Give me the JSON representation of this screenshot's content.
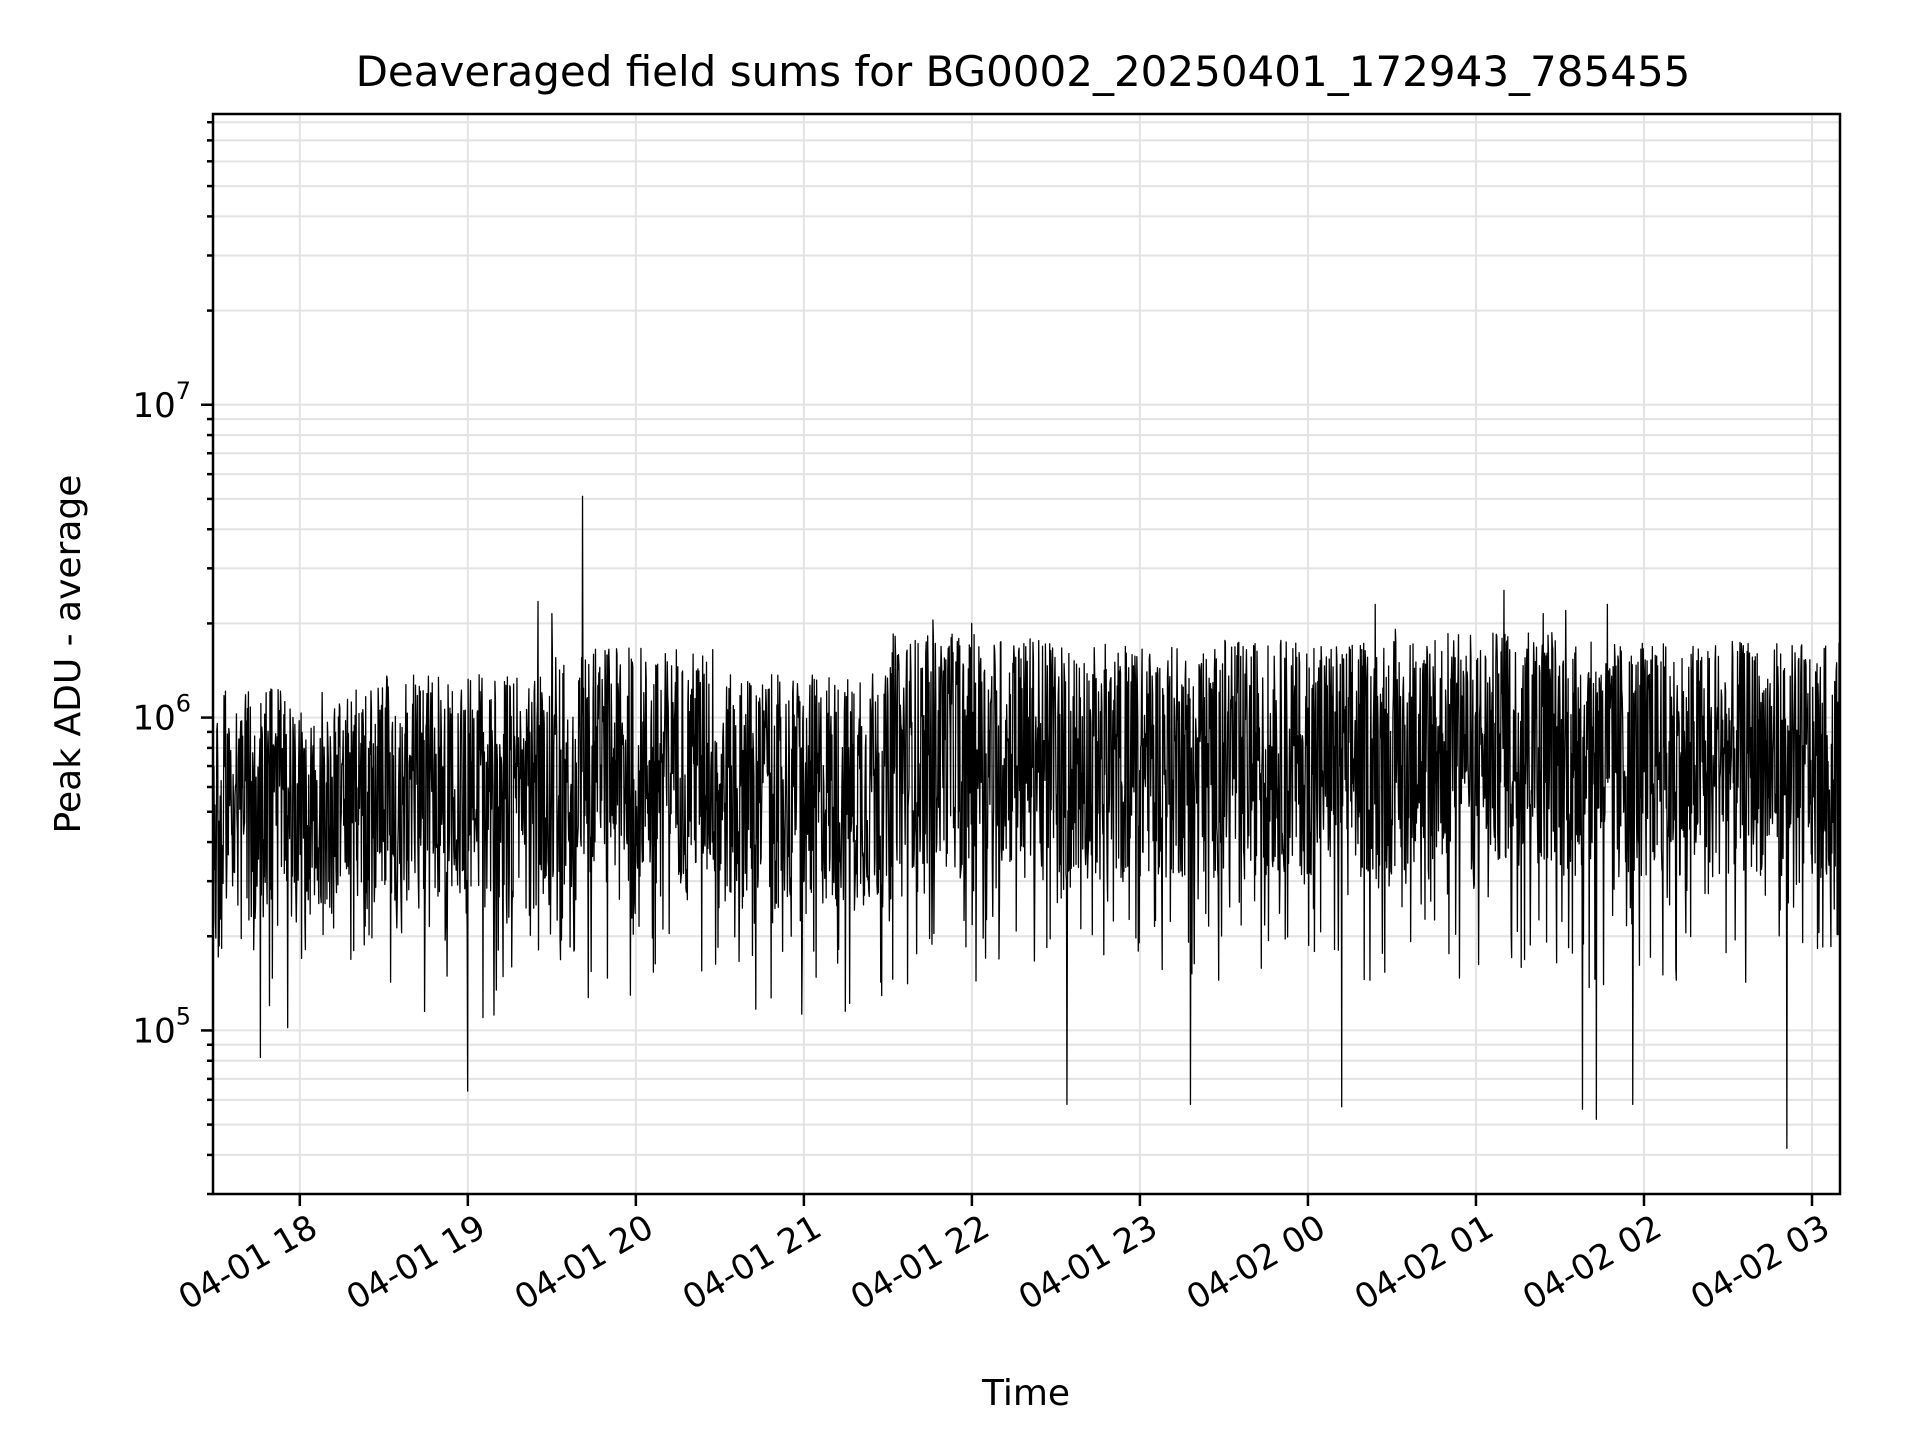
{
  "chart_data": {
    "type": "line",
    "title": "Deaveraged field sums for BG0002_20250401_172943_785455",
    "xlabel": "Time",
    "ylabel": "Peak ADU - average",
    "yscale": "log",
    "xlim": [
      "2025-04-01 17:29",
      "2025-04-02 03:10"
    ],
    "ylim": [
      30000,
      85000000
    ],
    "x_ticks": [
      "04-01 18",
      "04-01 19",
      "04-01 20",
      "04-01 21",
      "04-01 22",
      "04-01 23",
      "04-02 00",
      "04-02 01",
      "04-02 02",
      "04-02 03"
    ],
    "y_ticks": [
      {
        "label": "10",
        "exp": "5",
        "value": 100000
      },
      {
        "label": "10",
        "exp": "6",
        "value": 1000000
      },
      {
        "label": "10",
        "exp": "7",
        "value": 10000000
      }
    ],
    "grid": true,
    "series": [
      {
        "color": "#000000",
        "segments": [
          {
            "start": "2025-04-01 17:29",
            "end": "2025-04-01 18:30",
            "median": 520000
          },
          {
            "start": "2025-04-01 18:30",
            "end": "2025-04-01 19:30",
            "median": 580000
          },
          {
            "start": "2025-04-01 19:30",
            "end": "2025-04-01 20:30",
            "median": 700000
          },
          {
            "start": "2025-04-01 20:30",
            "end": "2025-04-01 21:30",
            "median": 580000
          },
          {
            "start": "2025-04-01 21:30",
            "end": "2025-04-01 22:30",
            "median": 780000
          },
          {
            "start": "2025-04-01 22:30",
            "end": "2025-04-01 23:30",
            "median": 720000
          },
          {
            "start": "2025-04-01 23:30",
            "end": "2025-04-02 00:30",
            "median": 740000
          },
          {
            "start": "2025-04-02 00:30",
            "end": "2025-04-02 01:30",
            "median": 800000
          },
          {
            "start": "2025-04-02 01:30",
            "end": "2025-04-02 03:10",
            "median": 740000
          }
        ],
        "spikes_high": [
          {
            "x": "2025-04-01 19:41",
            "y": 5100000
          },
          {
            "x": "2025-04-01 19:25",
            "y": 2350000
          },
          {
            "x": "2025-04-01 19:30",
            "y": 2150000
          },
          {
            "x": "2025-04-02 00:24",
            "y": 2300000
          },
          {
            "x": "2025-04-02 01:10",
            "y": 2550000
          },
          {
            "x": "2025-04-02 01:47",
            "y": 2300000
          },
          {
            "x": "2025-04-02 01:32",
            "y": 2200000
          },
          {
            "x": "2025-04-01 21:46",
            "y": 2050000
          },
          {
            "x": "2025-04-01 22:00",
            "y": 2000000
          },
          {
            "x": "2025-04-02 01:24",
            "y": 2150000
          }
        ],
        "spikes_low": [
          {
            "x": "2025-04-01 17:46",
            "y": 82000
          },
          {
            "x": "2025-04-01 19:00",
            "y": 64000
          },
          {
            "x": "2025-04-01 22:34",
            "y": 58000
          },
          {
            "x": "2025-04-01 23:18",
            "y": 58000
          },
          {
            "x": "2025-04-02 00:12",
            "y": 57000
          },
          {
            "x": "2025-04-02 01:43",
            "y": 52000
          },
          {
            "x": "2025-04-02 01:38",
            "y": 56000
          },
          {
            "x": "2025-04-02 02:51",
            "y": 42000
          },
          {
            "x": "2025-04-02 01:56",
            "y": 58000
          }
        ]
      }
    ]
  }
}
